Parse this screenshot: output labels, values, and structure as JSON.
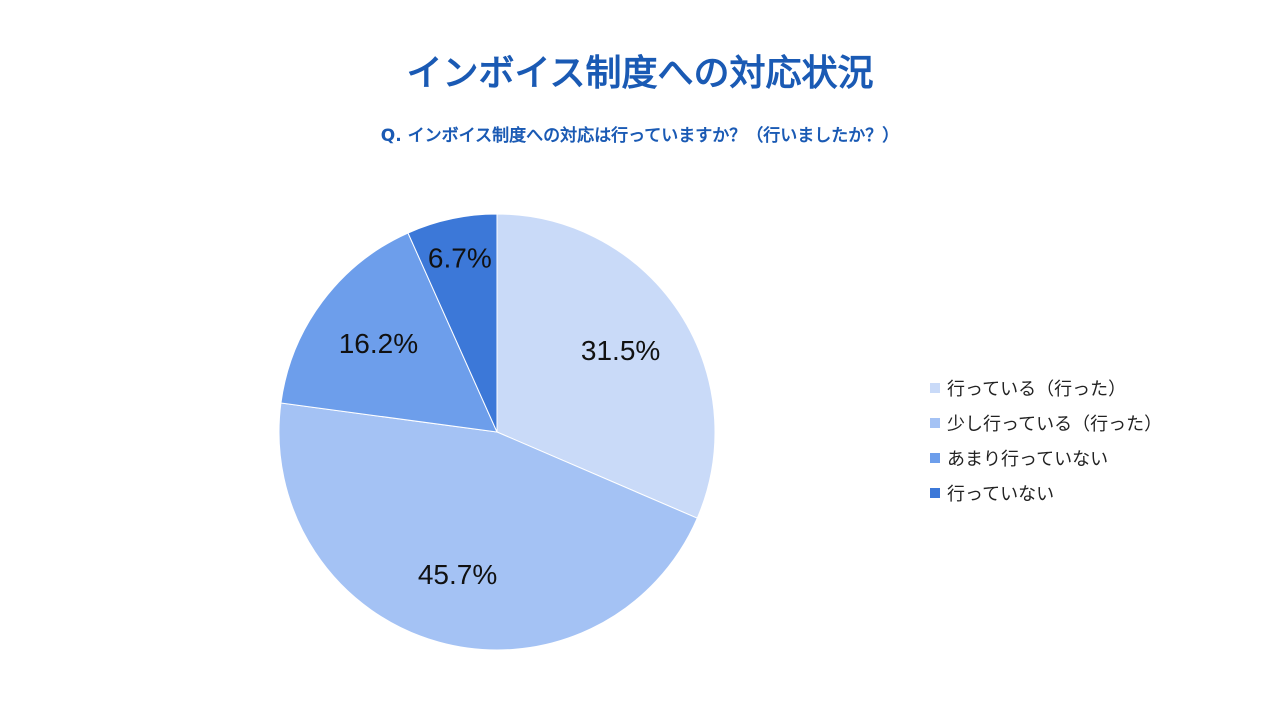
{
  "title": "インボイス制度への対応状況",
  "subtitle": "Q. インボイス制度への対応は行っていますか？（行いましたか？）",
  "chart_data": {
    "type": "pie",
    "categories": [
      "行っている（行った）",
      "少し行っている（行った）",
      "あまり行っていない",
      "行っていない"
    ],
    "values": [
      31.5,
      45.7,
      16.2,
      6.7
    ],
    "value_labels": [
      "31.5%",
      "45.7%",
      "16.2%",
      "6.7%"
    ],
    "colors": [
      "#c9daf8",
      "#a4c2f4",
      "#6d9eeb",
      "#3c78d8"
    ],
    "legend_position": "right",
    "start_angle_deg": 0,
    "direction": "clockwise"
  }
}
